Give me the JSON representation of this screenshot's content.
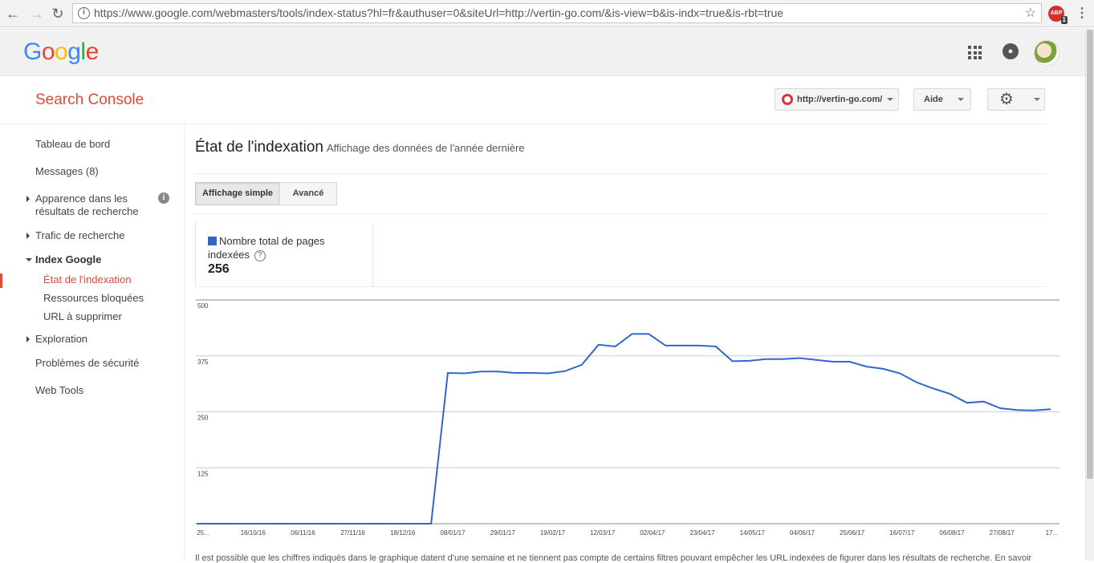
{
  "browser": {
    "url": "https://www.google.com/webmasters/tools/index-status?hl=fr&authuser=0&siteUrl=http://vertin-go.com/&is-view=b&is-indx=true&is-rbt=true",
    "extension_label": "ABP",
    "extension_badge": "1"
  },
  "header": {
    "logo_letters": [
      "G",
      "o",
      "o",
      "g",
      "l",
      "e"
    ],
    "product_title": "Search Console",
    "site_selector": "http://vertin-go.com/",
    "help_label": "Aide"
  },
  "sidebar": {
    "items": [
      {
        "label": "Tableau de bord"
      },
      {
        "label": "Messages (8)"
      },
      {
        "label": "Apparence dans les",
        "label2": "résultats de recherche"
      },
      {
        "label": "Trafic de recherche"
      },
      {
        "label": "Index Google"
      },
      {
        "label": "Exploration"
      },
      {
        "label": "Problèmes de sécurité"
      },
      {
        "label": "Web Tools"
      }
    ],
    "sub_items": [
      {
        "label": "État de l'indexation"
      },
      {
        "label": "Ressources bloquées"
      },
      {
        "label": "URL à supprimer"
      }
    ]
  },
  "main": {
    "title": "État de l'indexation",
    "subtitle": "Affichage des données de l'année dernière",
    "tabs": [
      {
        "label": "Affichage simple"
      },
      {
        "label": "Avancé"
      }
    ],
    "metric": {
      "label_line1": "Nombre total de pages",
      "label_line2": "indexées",
      "help_glyph": "?",
      "value": "256"
    },
    "footer": "Il est possible que les chiffres indiqués dans le graphique datent d'une semaine et ne tiennent pas compte de certains filtres pouvant empêcher les URL indexées de figurer dans les résultats de recherche. En savoir"
  },
  "colors": {
    "accent": "#dd4b39",
    "series": "#3366cc"
  },
  "chart_data": {
    "type": "line",
    "ylim": [
      0,
      500
    ],
    "y_ticks": [
      500,
      375,
      250,
      125
    ],
    "x_ticks": [
      "25...",
      "16/10/16",
      "06/11/16",
      "27/11/16",
      "18/12/16",
      "08/01/17",
      "29/01/17",
      "19/02/17",
      "12/03/17",
      "02/04/17",
      "23/04/17",
      "14/05/17",
      "04/06/17",
      "25/06/17",
      "16/07/17",
      "06/08/17",
      "27/08/17",
      "17..."
    ],
    "series": [
      {
        "name": "Nombre total de pages indexées",
        "values": [
          0,
          0,
          0,
          0,
          0,
          0,
          0,
          0,
          0,
          0,
          0,
          0,
          0,
          0,
          0,
          337,
          336,
          340,
          340,
          337,
          337,
          336,
          341,
          355,
          400,
          396,
          424,
          424,
          398,
          398,
          398,
          396,
          363,
          364,
          368,
          368,
          370,
          366,
          362,
          362,
          351,
          346,
          336,
          316,
          302,
          290,
          270,
          273,
          258,
          254,
          253,
          256
        ]
      }
    ]
  }
}
